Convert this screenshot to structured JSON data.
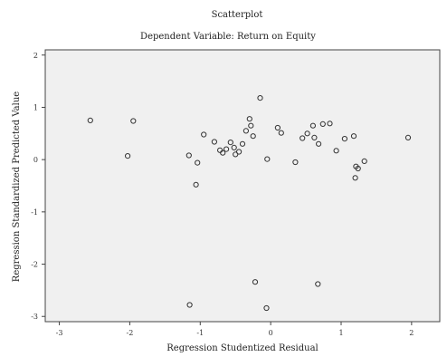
{
  "chart_data": {
    "type": "scatter",
    "title": "Scatterplot",
    "subtitle": "Dependent Variable: Return on Equity",
    "xlabel": "Regression Studentized Residual",
    "ylabel": "Regression Standardized Predicted Value",
    "xlim": [
      -3.2,
      2.4
    ],
    "ylim": [
      -3.1,
      2.1
    ],
    "xticks": [
      "-3",
      "-2",
      "-1",
      "0",
      "1",
      "2"
    ],
    "yticks": [
      "2",
      "1",
      "0",
      "-1",
      "-2",
      "-3"
    ],
    "grid": false,
    "marker": "open-circle",
    "plot_background": "#f0f0f0",
    "marker_color": "#333333",
    "series": [
      {
        "points": [
          [
            -2.56,
            0.75
          ],
          [
            -1.95,
            0.74
          ],
          [
            -2.03,
            0.07
          ],
          [
            -1.16,
            0.08
          ],
          [
            -1.04,
            -0.06
          ],
          [
            -1.06,
            -0.48
          ],
          [
            -1.15,
            -2.78
          ],
          [
            -0.95,
            0.48
          ],
          [
            -0.8,
            0.34
          ],
          [
            -0.72,
            0.18
          ],
          [
            -0.68,
            0.13
          ],
          [
            -0.63,
            0.2
          ],
          [
            -0.57,
            0.33
          ],
          [
            -0.52,
            0.23
          ],
          [
            -0.5,
            0.1
          ],
          [
            -0.45,
            0.15
          ],
          [
            -0.4,
            0.3
          ],
          [
            -0.35,
            0.55
          ],
          [
            -0.3,
            0.78
          ],
          [
            -0.28,
            0.65
          ],
          [
            -0.25,
            0.45
          ],
          [
            -0.15,
            1.18
          ],
          [
            -0.22,
            -2.34
          ],
          [
            -0.05,
            0.01
          ],
          [
            -0.06,
            -2.84
          ],
          [
            0.1,
            0.61
          ],
          [
            0.15,
            0.51
          ],
          [
            0.35,
            -0.05
          ],
          [
            0.45,
            0.41
          ],
          [
            0.52,
            0.5
          ],
          [
            0.6,
            0.65
          ],
          [
            0.62,
            0.42
          ],
          [
            0.68,
            0.3
          ],
          [
            0.74,
            0.68
          ],
          [
            0.84,
            0.69
          ],
          [
            0.67,
            -2.38
          ],
          [
            0.93,
            0.17
          ],
          [
            1.05,
            0.4
          ],
          [
            1.18,
            0.45
          ],
          [
            1.21,
            -0.13
          ],
          [
            1.24,
            -0.17
          ],
          [
            1.2,
            -0.35
          ],
          [
            1.33,
            -0.03
          ],
          [
            1.95,
            0.42
          ]
        ]
      }
    ]
  }
}
